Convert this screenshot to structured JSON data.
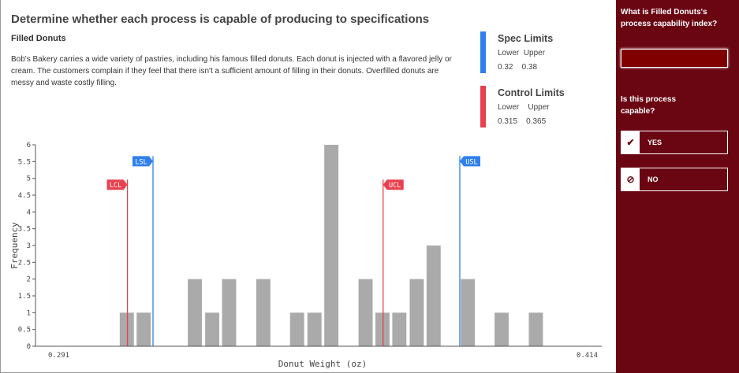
{
  "title": "Determine whether each process is capable of producing to specifications",
  "subtitle": "Filled Donuts",
  "description": "Bob's Bakery carries a wide variety of pastries, including his famous filled donuts. Each donut is injected with a flavored jelly or cream. The customers complain if they feel that there isn't a sufficient amount of filling in their donuts. Overfilled donuts are messy and waste costly filling.",
  "spec": {
    "title": "Spec Limits",
    "lower_label": "Lower",
    "upper_label": "Upper",
    "lower": "0.32",
    "upper": "0.38",
    "color": "#2f80ed"
  },
  "control": {
    "title": "Control Limits",
    "lower_label": "Lower",
    "upper_label": "Upper",
    "lower": "0.315",
    "upper": "0.365",
    "color": "#e8404e"
  },
  "side": {
    "q1": "What is Filled Donuts's process capability index?",
    "cpk_value": "",
    "q2": "Is this process capable?",
    "yes": "YES",
    "no": "NO",
    "yes_icon": "check-icon",
    "no_icon": "ban-icon",
    "bg": "#6a0612"
  },
  "chart_data": {
    "type": "bar",
    "xlabel": "Donut Weight (oz)",
    "ylabel": "Frequency",
    "xlim": [
      0.291,
      0.414
    ],
    "ylim": [
      0,
      6
    ],
    "x_tick_labels": [
      "0.291",
      "0.414"
    ],
    "y_ticks": [
      0,
      0.5,
      1,
      1.5,
      2,
      2.5,
      3,
      3.5,
      4,
      4.5,
      5,
      5.5,
      6
    ],
    "bin_width": 0.0033,
    "bins": [
      {
        "x0": 0.3135,
        "count": 1
      },
      {
        "x0": 0.3168,
        "count": 1
      },
      {
        "x0": 0.3268,
        "count": 2
      },
      {
        "x0": 0.3302,
        "count": 1
      },
      {
        "x0": 0.3335,
        "count": 2
      },
      {
        "x0": 0.3402,
        "count": 2
      },
      {
        "x0": 0.3468,
        "count": 1
      },
      {
        "x0": 0.3502,
        "count": 1
      },
      {
        "x0": 0.3535,
        "count": 6
      },
      {
        "x0": 0.3602,
        "count": 2
      },
      {
        "x0": 0.3635,
        "count": 1
      },
      {
        "x0": 0.3668,
        "count": 1
      },
      {
        "x0": 0.3702,
        "count": 2
      },
      {
        "x0": 0.3735,
        "count": 3
      },
      {
        "x0": 0.3802,
        "count": 2
      },
      {
        "x0": 0.3868,
        "count": 1
      },
      {
        "x0": 0.3935,
        "count": 1
      }
    ],
    "lines": [
      {
        "label": "LCL",
        "value": 0.315,
        "color": "#e8404e"
      },
      {
        "label": "LSL",
        "value": 0.32,
        "color": "#2f80ed"
      },
      {
        "label": "UCL",
        "value": 0.365,
        "color": "#e8404e"
      },
      {
        "label": "USL",
        "value": 0.38,
        "color": "#2f80ed"
      }
    ],
    "bar_color": "#aaaaaa"
  }
}
